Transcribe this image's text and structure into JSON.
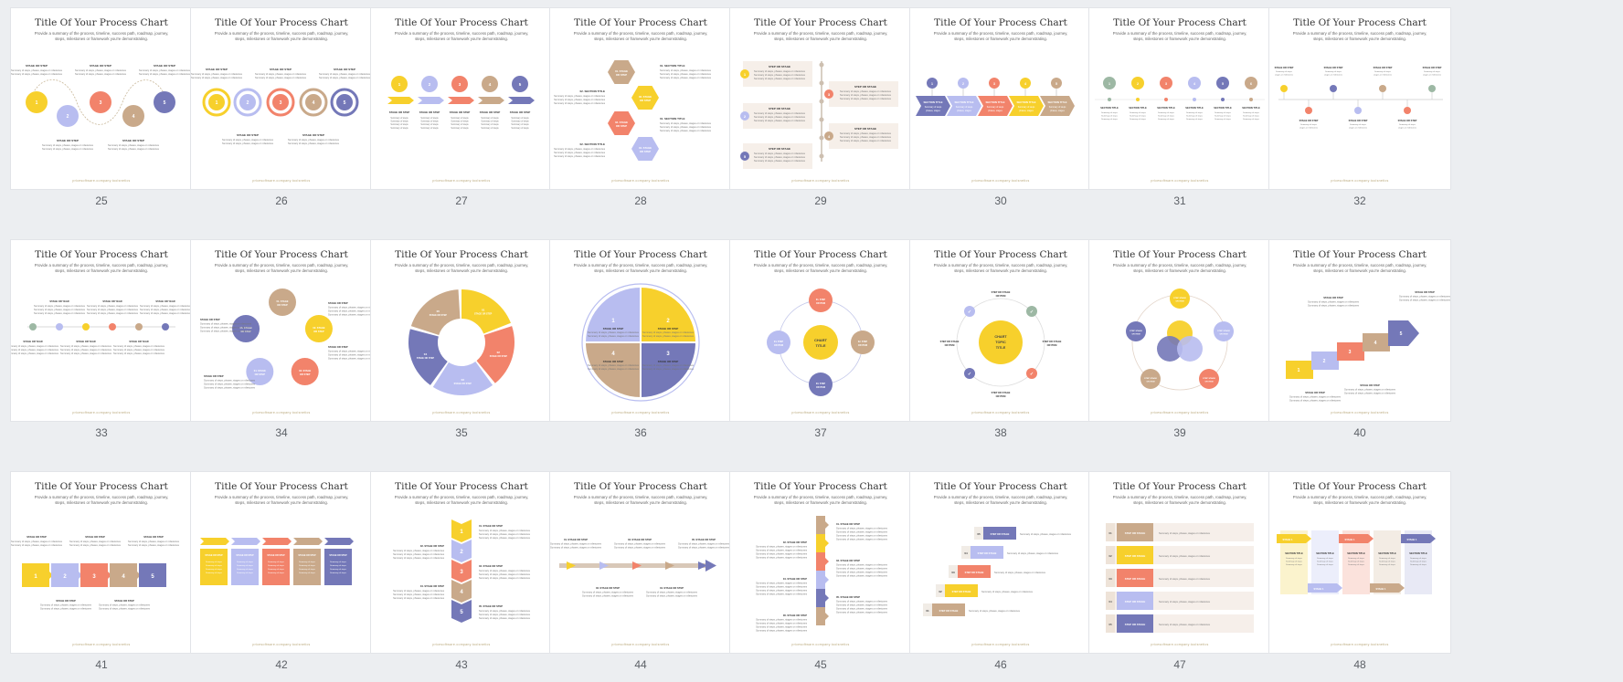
{
  "slide_title": "Title Of Your Process Chart",
  "slide_subtitle": "Provide a summary of the process, timeline, success path, roadmap, journey, steps, milestones or framework you're demonstrating.",
  "slide_footer": "pricesoftware.company.toolsnetics",
  "labels": {
    "stage_or_step": "STAGE OR STEP",
    "step_or_stage": "STEP OR STAGE",
    "section_title": "SECTION TITLE",
    "stage_or_year": "STAGE OR YEAR",
    "chart_title": "CHART TITLE",
    "chart_topic_title": "CHART TOPIC TITLE",
    "stage_or_category": "STAGE OR CATEGORY",
    "step_or_item": "STEP OR ITEM",
    "summary": "Summary of steps, phases, stages or milestones",
    "stage_n": "STAGE 1"
  },
  "colors": {
    "yellow": "#f7d02c",
    "lavender": "#b8bdf0",
    "coral": "#f2836b",
    "tan": "#c9a98a",
    "indigo": "#7478b8",
    "sage": "#9db8a4",
    "page_bg": "#eceef1"
  },
  "slides": [
    {
      "number": "25",
      "layout": "wave"
    },
    {
      "number": "26",
      "layout": "loops"
    },
    {
      "number": "27",
      "layout": "circles-arrows"
    },
    {
      "number": "28",
      "layout": "hexagons"
    },
    {
      "number": "29",
      "layout": "vertical-timeline"
    },
    {
      "number": "30",
      "layout": "chevron-circles"
    },
    {
      "number": "31",
      "layout": "dot-timeline"
    },
    {
      "number": "32",
      "layout": "zigzag-line"
    },
    {
      "number": "33",
      "layout": "years-line"
    },
    {
      "number": "34",
      "layout": "cycle-circles"
    },
    {
      "number": "35",
      "layout": "donut-arrows"
    },
    {
      "number": "36",
      "layout": "quad-circle"
    },
    {
      "number": "37",
      "layout": "hub-ring"
    },
    {
      "number": "38",
      "layout": "check-ring"
    },
    {
      "number": "39",
      "layout": "venn-ring"
    },
    {
      "number": "40",
      "layout": "staircase"
    },
    {
      "number": "41",
      "layout": "square-row"
    },
    {
      "number": "42",
      "layout": "chevron-cards"
    },
    {
      "number": "43",
      "layout": "vertical-chevrons"
    },
    {
      "number": "44",
      "layout": "arrow-line"
    },
    {
      "number": "45",
      "layout": "vertical-bars"
    },
    {
      "number": "46",
      "layout": "stairs-down"
    },
    {
      "number": "47",
      "layout": "table-rows"
    },
    {
      "number": "48",
      "layout": "arrow-columns"
    }
  ]
}
